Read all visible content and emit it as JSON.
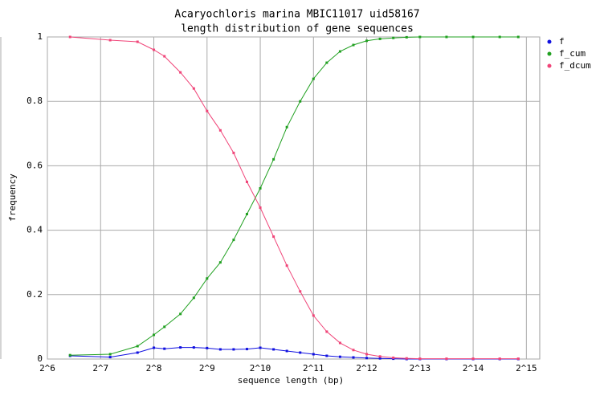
{
  "chart_data": {
    "type": "line",
    "title": "Acaryochloris marina MBIC11017 uid58167",
    "subtitle": "length distribution of gene sequences",
    "x_label": "sequence length (bp)",
    "y_label": "frequency",
    "x": [
      86,
      145,
      207,
      256,
      294,
      362,
      431,
      512,
      609,
      724,
      861,
      1024,
      1218,
      1448,
      1722,
      2048,
      2435,
      2896,
      3444,
      4096,
      4871,
      5793,
      6889,
      8192,
      11585,
      16384,
      23170,
      29500
    ],
    "series": [
      {
        "name": "f",
        "color": "#1010e0",
        "values": [
          0.01,
          0.006,
          0.02,
          0.035,
          0.032,
          0.036,
          0.036,
          0.034,
          0.03,
          0.03,
          0.031,
          0.035,
          0.03,
          0.025,
          0.02,
          0.015,
          0.01,
          0.007,
          0.005,
          0.003,
          0.002,
          0.001,
          0,
          0,
          0,
          0,
          0,
          0
        ]
      },
      {
        "name": "f_cum",
        "color": "#20a020",
        "values": [
          0.012,
          0.015,
          0.04,
          0.075,
          0.1,
          0.14,
          0.19,
          0.25,
          0.3,
          0.37,
          0.45,
          0.53,
          0.62,
          0.72,
          0.8,
          0.87,
          0.92,
          0.955,
          0.975,
          0.988,
          0.994,
          0.997,
          0.999,
          1,
          1,
          1,
          1,
          1
        ]
      },
      {
        "name": "f_dcum",
        "color": "#f04478",
        "values": [
          1,
          0.99,
          0.985,
          0.96,
          0.94,
          0.89,
          0.84,
          0.77,
          0.71,
          0.64,
          0.55,
          0.47,
          0.38,
          0.29,
          0.21,
          0.135,
          0.085,
          0.05,
          0.028,
          0.015,
          0.008,
          0.004,
          0.002,
          0.001,
          0.001,
          0.001,
          0.001,
          0.001
        ]
      }
    ],
    "x_log_base": 2,
    "xlim": [
      64,
      39000
    ],
    "xticks": [
      {
        "value": 64,
        "label": "2^6"
      },
      {
        "value": 128,
        "label": "2^7"
      },
      {
        "value": 256,
        "label": "2^8"
      },
      {
        "value": 512,
        "label": "2^9"
      },
      {
        "value": 1024,
        "label": "2^10"
      },
      {
        "value": 2048,
        "label": "2^11"
      },
      {
        "value": 4096,
        "label": "2^12"
      },
      {
        "value": 8192,
        "label": "2^13"
      },
      {
        "value": 16384,
        "label": "2^14"
      },
      {
        "value": 32768,
        "label": "2^15"
      }
    ],
    "ylim": [
      0,
      1
    ],
    "yticks": [
      0,
      0.2,
      0.4,
      0.6,
      0.8,
      1
    ],
    "grid": true,
    "legend": "right"
  }
}
